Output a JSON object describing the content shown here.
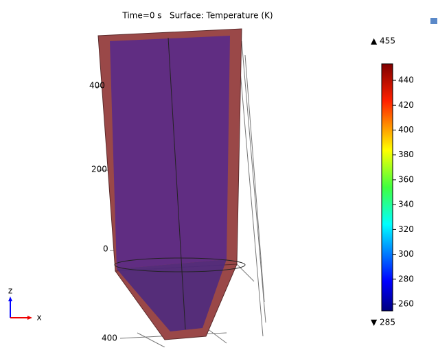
{
  "plot": {
    "title": "Time=0 s   Surface: Temperature (K)",
    "axis_labels": [
      "400",
      "200",
      "0",
      "400"
    ],
    "colorbar": {
      "max_label": "▲ 455",
      "min_label": "▼ 285",
      "range": [
        254.5,
        453.3
      ],
      "ticks": [
        440,
        420,
        400,
        380,
        360,
        340,
        320,
        300,
        280,
        260
      ]
    },
    "triad": {
      "z": "z",
      "x": "x"
    }
  }
}
